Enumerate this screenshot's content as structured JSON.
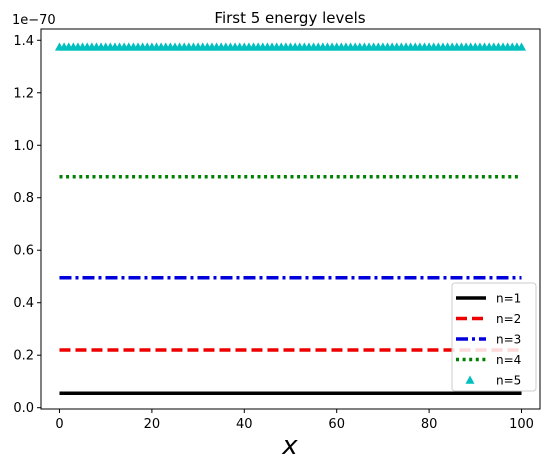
{
  "chart_data": {
    "type": "line",
    "title": "First 5 energy levels",
    "xlabel": "x",
    "ylabel": "",
    "offset_text": "1e−70",
    "xlim": [
      -4,
      104
    ],
    "ylim": [
      -0.005,
      1.443
    ],
    "x_ticks": [
      0,
      20,
      40,
      60,
      80,
      100
    ],
    "x_tick_labels": [
      "0",
      "20",
      "40",
      "60",
      "80",
      "100"
    ],
    "y_ticks": [
      0.0,
      0.2,
      0.4,
      0.6,
      0.8,
      1.0,
      1.2,
      1.4
    ],
    "y_tick_labels": [
      "0.0",
      "0.2",
      "0.4",
      "0.6",
      "0.8",
      "1.0",
      "1.2",
      "1.4"
    ],
    "grid": false,
    "legend_position": "lower-right",
    "series": [
      {
        "name": "n=1",
        "color": "#000000",
        "style": "solid",
        "x": [
          0,
          100
        ],
        "values": [
          0.055,
          0.055
        ]
      },
      {
        "name": "n=2",
        "color": "#ee0000",
        "style": "dashed",
        "x": [
          0,
          100
        ],
        "values": [
          0.22,
          0.22
        ]
      },
      {
        "name": "n=3",
        "color": "#0000dd",
        "style": "dashdot",
        "x": [
          0,
          100
        ],
        "values": [
          0.495,
          0.495
        ]
      },
      {
        "name": "n=4",
        "color": "#008000",
        "style": "dotted",
        "x": [
          0,
          100
        ],
        "values": [
          0.88,
          0.88
        ]
      },
      {
        "name": "n=5",
        "color": "#00bfbf",
        "style": "triangle-markers",
        "x": [
          0,
          100
        ],
        "values": [
          1.375,
          1.375
        ]
      }
    ]
  }
}
